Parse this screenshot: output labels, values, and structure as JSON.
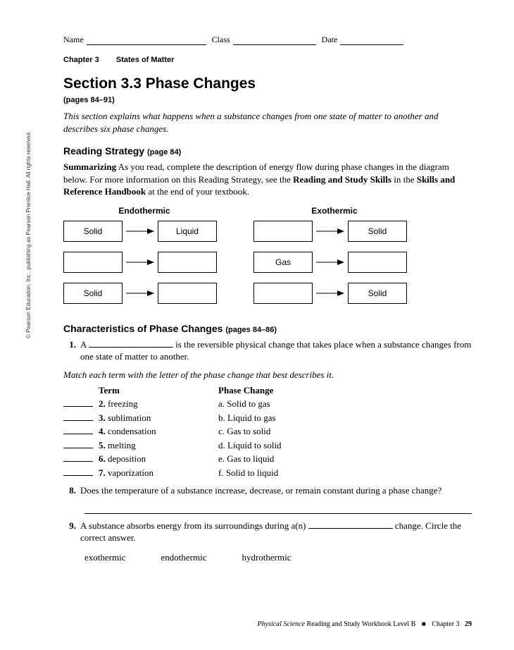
{
  "header": {
    "name_label": "Name",
    "class_label": "Class",
    "date_label": "Date",
    "name_width": 170,
    "class_width": 118,
    "date_width": 90
  },
  "chapter": {
    "num": "Chapter 3",
    "title": "States of Matter"
  },
  "section": {
    "title": "Section 3.3 Phase Changes",
    "pages": "(pages 84–91)",
    "intro": "This section explains what happens when a substance changes from one state of matter to another and describes six phase changes."
  },
  "reading_strategy": {
    "heading": "Reading Strategy",
    "pg": "(page 84)",
    "run_in": "Summarizing",
    "body_1": "  As you read, complete the description of energy flow during phase changes in the diagram below. For more information on this Reading Strategy, see the ",
    "bold_1": "Reading and Study Skills",
    "mid": " in the ",
    "bold_2": "Skills and Reference Handbook",
    "tail": " at the end of your textbook."
  },
  "diagram": {
    "endo_title": "Endothermic",
    "exo_title": "Exothermic",
    "endo_rows": [
      {
        "left": "Solid",
        "right": "Liquid"
      },
      {
        "left": "",
        "right": ""
      },
      {
        "left": "Solid",
        "right": ""
      }
    ],
    "exo_rows": [
      {
        "left": "",
        "right": "Solid"
      },
      {
        "left": "Gas",
        "right": ""
      },
      {
        "left": "",
        "right": "Solid"
      }
    ]
  },
  "characteristics": {
    "heading": "Characteristics of Phase Changes",
    "pg": "(pages 84–86)"
  },
  "q1": {
    "num": "1.",
    "pre": "A ",
    "blank_width": 120,
    "post": " is the reversible physical change that takes place when a substance changes from one state of matter to another."
  },
  "match": {
    "instr": "Match each term with the letter of the phase change that best describes it.",
    "col1": "Term",
    "col2": "Phase Change",
    "rows": [
      {
        "n": "2.",
        "term": "freezing",
        "def": "a.  Solid to gas"
      },
      {
        "n": "3.",
        "term": "sublimation",
        "def": "b.  Liquid to gas"
      },
      {
        "n": "4.",
        "term": "condensation",
        "def": "c.  Gas to solid"
      },
      {
        "n": "5.",
        "term": "melting",
        "def": "d.  Liquid to solid"
      },
      {
        "n": "6.",
        "term": "deposition",
        "def": "e.  Gas to liquid"
      },
      {
        "n": "7.",
        "term": "vaporization",
        "def": "f.  Solid to liquid"
      }
    ]
  },
  "q8": {
    "num": "8.",
    "text": "Does the temperature of a substance increase, decrease, or remain constant during a phase change?"
  },
  "q9": {
    "num": "9.",
    "pre": "A substance absorbs energy from its surroundings during a(n) ",
    "blank_width": 120,
    "post": " change. Circle the correct answer.",
    "choices": [
      "exothermic",
      "endothermic",
      "hydrothermic"
    ]
  },
  "copyright": "© Pearson Education, Inc., publishing as Pearson Prentice Hall. All rights reserved.",
  "footer": {
    "phys": "Physical Science",
    "rest": " Reading and Study Workbook Level B",
    "chap": "Chapter 3",
    "page": "29"
  }
}
